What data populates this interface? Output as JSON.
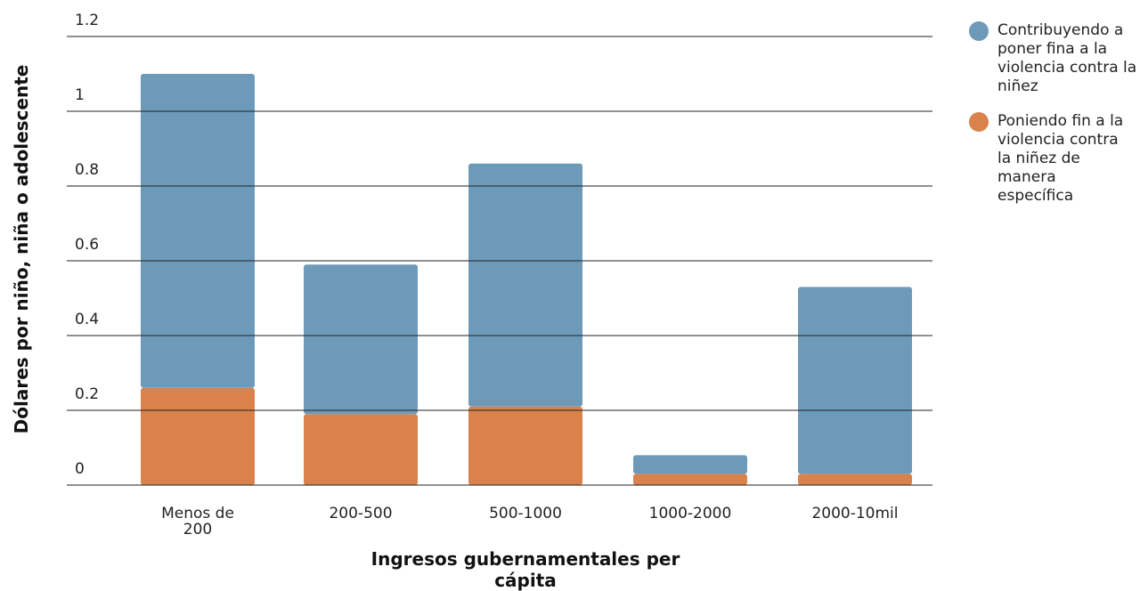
{
  "chart_data": {
    "type": "bar",
    "stacked": true,
    "y_label": "Dólares por niño, niña o adolescente",
    "x_label": "Ingresos gubernamentales per cápita",
    "categories": [
      "Menos de 200",
      "200-500",
      "500-1000",
      "1000-2000",
      "2000-10mil"
    ],
    "series": [
      {
        "name": "Contribuyendo a poner fina a la violencia contra la niñez",
        "color": "#6d9ab9",
        "values": [
          0.84,
          0.4,
          0.65,
          0.05,
          0.5
        ]
      },
      {
        "name": "Poniendo fin a la violencia contra la niñez de manera específica",
        "color": "#d9824c",
        "values": [
          0.26,
          0.19,
          0.21,
          0.03,
          0.03
        ]
      }
    ],
    "ylim": [
      0,
      1.2
    ],
    "yticks": [
      0,
      0.2,
      0.4,
      0.6,
      0.8,
      1,
      1.2
    ],
    "grid": true
  }
}
